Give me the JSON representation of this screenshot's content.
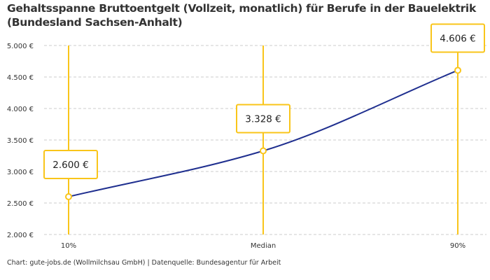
{
  "title_line1": "Gehaltsspanne Bruttoentgelt (Vollzeit, monatlich) für Berufe in der Bauelektrik",
  "title_line2": "(Bundesland Sachsen-Anhalt)",
  "footer": "Chart: gute-jobs.de (Wollmilchsau GmbH) | Datenquelle: Bundesagentur für Arbeit",
  "colors": {
    "line": "#1f2f8f",
    "accent": "#f9c51a",
    "grid": "#cccccc"
  },
  "chart_data": {
    "type": "line",
    "categories": [
      "10%",
      "Median",
      "90%"
    ],
    "values": [
      2600,
      3328,
      4606
    ],
    "data_labels": [
      "2.600 €",
      "3.328 €",
      "4.606 €"
    ],
    "ylim": [
      2000,
      5000
    ],
    "yticks": [
      2000,
      2500,
      3000,
      3500,
      4000,
      4500,
      5000
    ],
    "ytick_labels": [
      "2.000 €",
      "2.500 €",
      "3.000 €",
      "3.500 €",
      "4.000 €",
      "4.500 €",
      "5.000 €"
    ],
    "grid": true,
    "smooth": true
  }
}
